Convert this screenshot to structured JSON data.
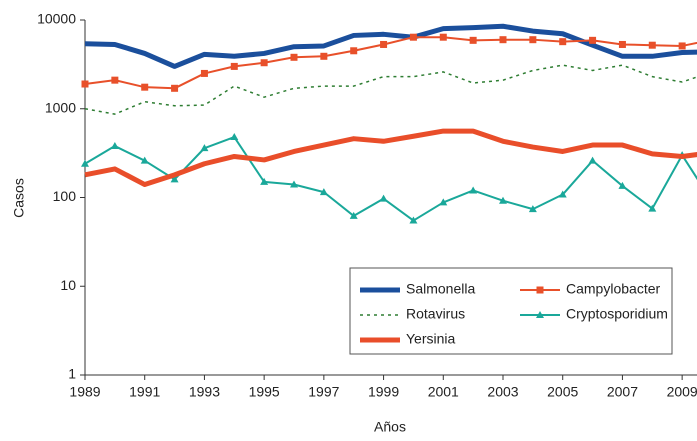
{
  "chart_data": {
    "type": "line",
    "x_label": "Años",
    "y_label": "Casos",
    "log_scale": "y",
    "x": [
      1989,
      1990,
      1991,
      1992,
      1993,
      1994,
      1995,
      1996,
      1997,
      1998,
      1999,
      2000,
      2001,
      2002,
      2003,
      2004,
      2005,
      2006,
      2007,
      2008,
      2009,
      2010
    ],
    "xlim": [
      1989,
      2010
    ],
    "xticks": [
      1989,
      1991,
      1993,
      1995,
      1997,
      1999,
      2001,
      2003,
      2005,
      2007,
      2009
    ],
    "ylim": [
      1,
      10000
    ],
    "yticks": [
      1,
      10,
      100,
      1000,
      10000
    ],
    "series": [
      {
        "name": "Salmonella",
        "color": "#1b4f9c",
        "line_style": "solid",
        "line_width": 5,
        "marker": "none",
        "values": [
          5400,
          5300,
          4200,
          3000,
          4100,
          3900,
          4200,
          5000,
          5100,
          6700,
          6900,
          6400,
          8000,
          8200,
          8500,
          7500,
          7000,
          5200,
          3900,
          3900,
          4300,
          4400
        ]
      },
      {
        "name": "Campylobacter",
        "color": "#e8502a",
        "line_style": "solid",
        "line_width": 2,
        "marker": "square",
        "values": [
          1900,
          2100,
          1750,
          1700,
          2500,
          3000,
          3300,
          3800,
          3900,
          4500,
          5300,
          6400,
          6400,
          5900,
          6000,
          6000,
          5700,
          5900,
          5300,
          5200,
          5100,
          6000
        ]
      },
      {
        "name": "Rotavirus",
        "color": "#2e7d32",
        "line_style": "dashed",
        "line_width": 1.5,
        "marker": "none",
        "values": [
          1000,
          870,
          1200,
          1080,
          1100,
          1800,
          1350,
          1700,
          1800,
          1800,
          2300,
          2300,
          2600,
          1950,
          2100,
          2700,
          3100,
          2700,
          3100,
          2300,
          2000,
          2600
        ]
      },
      {
        "name": "Cryptosporidium",
        "color": "#1aa89a",
        "line_style": "solid",
        "line_width": 2,
        "marker": "triangle",
        "values": [
          240,
          380,
          260,
          160,
          360,
          480,
          150,
          140,
          115,
          62,
          97,
          55,
          88,
          120,
          92,
          74,
          108,
          260,
          135,
          75,
          300,
          90
        ]
      },
      {
        "name": "Yersinia",
        "color": "#e94e2a",
        "line_style": "solid",
        "line_width": 5,
        "marker": "none",
        "values": [
          180,
          210,
          140,
          180,
          240,
          290,
          265,
          330,
          390,
          460,
          430,
          490,
          560,
          560,
          430,
          370,
          330,
          390,
          390,
          310,
          290,
          320
        ]
      }
    ]
  }
}
